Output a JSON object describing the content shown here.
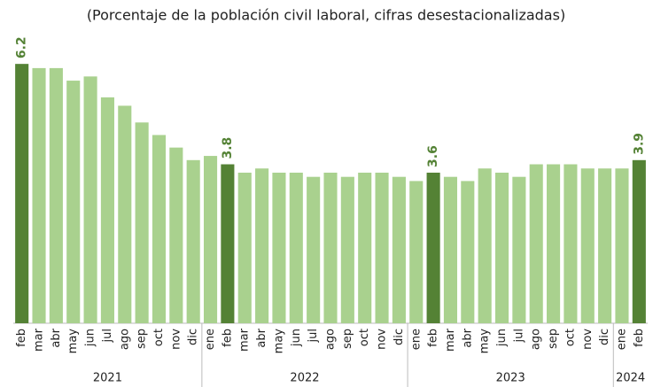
{
  "chart_data": {
    "type": "bar",
    "subtitle": "(Porcentaje de la población civil laboral, cifras desestacionalizadas)",
    "categories": [
      "feb",
      "mar",
      "abr",
      "may",
      "jun",
      "jul",
      "ago",
      "sep",
      "oct",
      "nov",
      "dic",
      "ene",
      "feb",
      "mar",
      "abr",
      "may",
      "jun",
      "jul",
      "ago",
      "sep",
      "oct",
      "nov",
      "dic",
      "ene",
      "feb",
      "mar",
      "abr",
      "may",
      "jun",
      "jul",
      "ago",
      "sep",
      "oct",
      "nov",
      "dic",
      "ene",
      "feb"
    ],
    "values": [
      6.2,
      6.1,
      6.1,
      5.8,
      5.9,
      5.4,
      5.2,
      4.8,
      4.5,
      4.2,
      3.9,
      4.0,
      3.8,
      3.6,
      3.7,
      3.6,
      3.6,
      3.5,
      3.6,
      3.5,
      3.6,
      3.6,
      3.5,
      3.4,
      3.6,
      3.5,
      3.4,
      3.7,
      3.6,
      3.5,
      3.8,
      3.8,
      3.8,
      3.7,
      3.7,
      3.7,
      3.9
    ],
    "value_labels": [
      "6.2",
      null,
      null,
      null,
      null,
      null,
      null,
      null,
      null,
      null,
      null,
      null,
      "3.8",
      null,
      null,
      null,
      null,
      null,
      null,
      null,
      null,
      null,
      null,
      null,
      "3.6",
      null,
      null,
      null,
      null,
      null,
      null,
      null,
      null,
      null,
      null,
      null,
      "3.9"
    ],
    "color": "#a9d18e",
    "highlight_color": "#548235",
    "years": [
      "2021",
      "2022",
      "2023",
      "2024"
    ],
    "ylim": [
      0,
      6.5
    ]
  }
}
